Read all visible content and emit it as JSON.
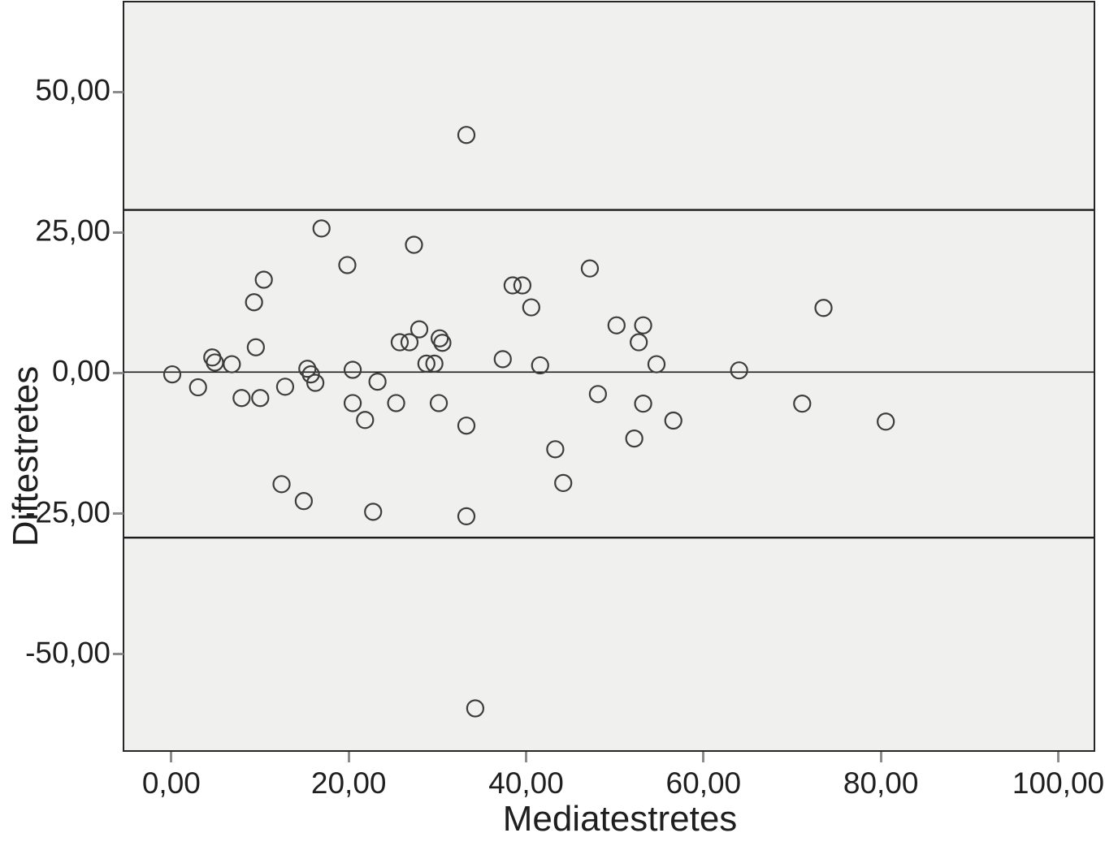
{
  "chart_data": {
    "type": "scatter",
    "title": "",
    "xlabel": "Mediatestretes",
    "ylabel": "Diftestretes",
    "xlim": [
      -5.3,
      103.8
    ],
    "ylim": [
      -66.8,
      65.9
    ],
    "grid": false,
    "legend": false,
    "x_ticks": [
      0,
      20,
      40,
      60,
      80,
      100
    ],
    "x_tick_labels": [
      "0,00",
      "20,00",
      "40,00",
      "60,00",
      "80,00",
      "100,00"
    ],
    "y_ticks": [
      50,
      25,
      0,
      -25,
      -50
    ],
    "y_tick_labels": [
      "50,00",
      "25,00",
      "0,00",
      "-25,00",
      "-50,00"
    ],
    "reference_lines": [
      {
        "name": "upper-limit-of-agreement",
        "y": 29.1,
        "width": 2.4
      },
      {
        "name": "mean-difference",
        "y": 0.3,
        "width": 1.6
      },
      {
        "name": "lower-limit-of-agreement",
        "y": -29.1,
        "width": 2.4
      }
    ],
    "points": [
      [
        0.1,
        -0.1
      ],
      [
        3.0,
        -2.4
      ],
      [
        4.6,
        2.9
      ],
      [
        4.9,
        2.0
      ],
      [
        6.8,
        1.7
      ],
      [
        7.9,
        -4.3
      ],
      [
        10.0,
        -4.3
      ],
      [
        9.3,
        12.7
      ],
      [
        10.4,
        16.7
      ],
      [
        9.5,
        4.7
      ],
      [
        12.8,
        -2.3
      ],
      [
        12.4,
        -19.6
      ],
      [
        14.9,
        -22.6
      ],
      [
        15.3,
        0.9
      ],
      [
        15.7,
        -0.1
      ],
      [
        16.2,
        -1.6
      ],
      [
        16.9,
        25.8
      ],
      [
        19.8,
        19.3
      ],
      [
        20.4,
        0.7
      ],
      [
        20.4,
        -5.2
      ],
      [
        21.8,
        -8.2
      ],
      [
        22.7,
        -24.5
      ],
      [
        23.2,
        -1.4
      ],
      [
        25.3,
        -5.2
      ],
      [
        25.7,
        5.6
      ],
      [
        26.8,
        5.6
      ],
      [
        27.3,
        22.9
      ],
      [
        27.9,
        7.9
      ],
      [
        28.7,
        1.8
      ],
      [
        29.6,
        1.8
      ],
      [
        30.2,
        6.3
      ],
      [
        30.5,
        5.5
      ],
      [
        30.1,
        -5.2
      ],
      [
        33.2,
        42.4
      ],
      [
        33.2,
        -9.2
      ],
      [
        33.2,
        -25.3
      ],
      [
        34.2,
        -59.4
      ],
      [
        37.3,
        2.6
      ],
      [
        38.4,
        15.7
      ],
      [
        39.5,
        15.7
      ],
      [
        40.5,
        11.8
      ],
      [
        41.5,
        1.5
      ],
      [
        43.2,
        -13.4
      ],
      [
        44.1,
        -19.4
      ],
      [
        47.1,
        18.7
      ],
      [
        48.0,
        -3.6
      ],
      [
        50.1,
        8.6
      ],
      [
        52.1,
        -11.5
      ],
      [
        52.6,
        5.6
      ],
      [
        53.1,
        8.6
      ],
      [
        53.1,
        -5.3
      ],
      [
        54.6,
        1.7
      ],
      [
        56.5,
        -8.3
      ],
      [
        63.9,
        0.6
      ],
      [
        71.0,
        -5.3
      ],
      [
        73.4,
        11.7
      ],
      [
        80.4,
        -8.5
      ]
    ],
    "marker": {
      "shape": "circle",
      "radius_px": 10,
      "stroke": "#3d3d3d",
      "stroke_width": 2.2,
      "fill": "none"
    },
    "colors": {
      "plot_bg": "#f0f0ee",
      "border": "#262626",
      "line": "#1c1c1c",
      "text": "#1f1f1f",
      "tick": "#8c8c8c",
      "page_bg": "#ffffff"
    }
  }
}
